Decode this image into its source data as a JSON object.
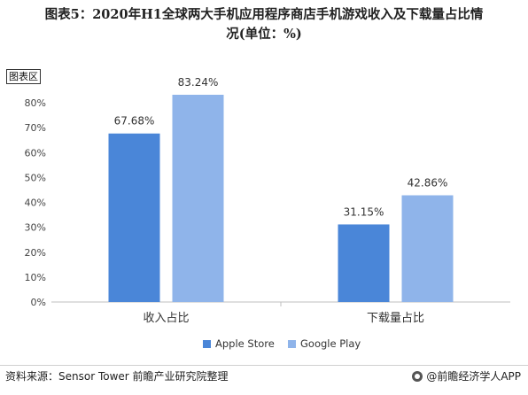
{
  "header": {
    "title_line1": "图表5：2020年H1全球两大手机应用程序商店手机游戏收入及下载量占比情",
    "title_line2": "况(单位：%)",
    "area_label": "图表区"
  },
  "footer": {
    "source": "资料来源：Sensor Tower 前瞻产业研究院整理",
    "brand": "@前瞻经济学人APP",
    "brand_icon": "qianzhan-logo-icon"
  },
  "chart_data": {
    "type": "bar",
    "categories": [
      "收入占比",
      "下载量占比"
    ],
    "series": [
      {
        "name": "Apple Store",
        "values": [
          67.68,
          31.15
        ],
        "color": "#4a86d8"
      },
      {
        "name": "Google Play",
        "values": [
          83.24,
          42.86
        ],
        "color": "#8fb4ea"
      }
    ],
    "data_labels": [
      [
        "67.68%",
        "31.15%"
      ],
      [
        "83.24%",
        "42.86%"
      ]
    ],
    "ylim": [
      0,
      90
    ],
    "yticks": [
      0,
      10,
      20,
      30,
      40,
      50,
      60,
      70,
      80
    ],
    "ytick_labels": [
      "0%",
      "10%",
      "20%",
      "30%",
      "40%",
      "50%",
      "60%",
      "70%",
      "80%"
    ],
    "xlabel": "",
    "ylabel": "",
    "grid": false,
    "legend": "bottom-center",
    "axis_color": "#bfbfbf"
  }
}
